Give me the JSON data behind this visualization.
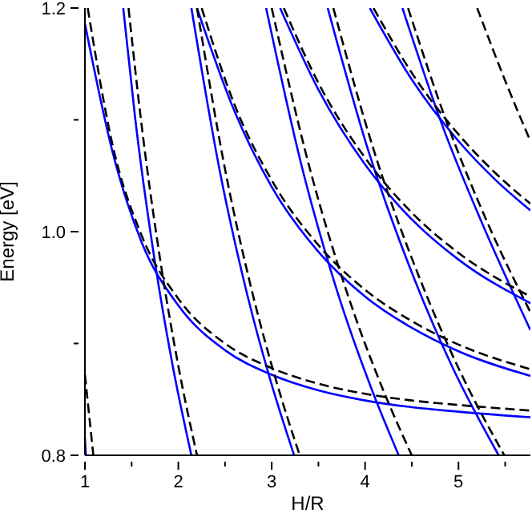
{
  "chart_data": {
    "type": "line",
    "xlabel": "H/R",
    "ylabel": "Energy [eV]",
    "xlim": [
      1,
      5.77
    ],
    "ylim": [
      0.8,
      1.2
    ],
    "xticks": [
      1,
      {
        "value": 1.5,
        "label": null
      },
      2,
      {
        "value": 2.5,
        "label": null
      },
      3,
      {
        "value": 3.5,
        "label": null
      },
      4,
      {
        "value": 4.5,
        "label": null
      },
      5,
      {
        "value": 5.5,
        "label": null
      }
    ],
    "yticks": [
      0.8,
      {
        "value": 0.9,
        "label": null
      },
      {
        "value": 1,
        "label": "1.0"
      },
      {
        "value": 1.1,
        "label": null
      },
      1.2
    ],
    "marker": "none",
    "series": [
      {
        "color": "#0000ff",
        "line_style": "solid",
        "x": [
          1.0,
          1.01
        ],
        "values": [
          0.815,
          0.8
        ]
      },
      {
        "color": "#0000ff",
        "line_style": "solid",
        "x": [
          1.41,
          1.54,
          1.74,
          1.94,
          2.14
        ],
        "values": [
          1.2,
          1.1,
          0.978,
          0.88,
          0.8
        ]
      },
      {
        "color": "#0000ff",
        "line_style": "solid",
        "x": [
          2.14,
          2.44,
          2.74,
          2.99,
          3.24
        ],
        "values": [
          1.2,
          1.056,
          0.943,
          0.866,
          0.8
        ]
      },
      {
        "color": "#0000ff",
        "line_style": "solid",
        "x": [
          2.94,
          3.32,
          3.7,
          4.08,
          4.36
        ],
        "values": [
          1.2,
          1.059,
          0.947,
          0.857,
          0.8
        ]
      },
      {
        "color": "#0000ff",
        "line_style": "solid",
        "x": [
          3.6,
          4.04,
          4.54,
          4.94,
          5.43
        ],
        "values": [
          1.2,
          1.071,
          0.955,
          0.878,
          0.8
        ]
      },
      {
        "color": "#0000ff",
        "line_style": "solid",
        "x": [
          4.4,
          4.84,
          5.24,
          5.77
        ],
        "values": [
          1.2,
          1.092,
          1.01,
          0.912
        ]
      },
      {
        "color": "#0000ff",
        "line_style": "solid",
        "x": [
          1.0,
          1.3,
          1.6,
          2.0,
          2.5,
          3.0,
          3.5,
          4.0,
          4.5,
          5.0,
          5.77
        ],
        "values": [
          1.186,
          1.07,
          0.992,
          0.934,
          0.894,
          0.872,
          0.858,
          0.849,
          0.843,
          0.839,
          0.834
        ]
      },
      {
        "color": "#0000ff",
        "line_style": "solid",
        "x": [
          2.2,
          2.6,
          3.0,
          3.5,
          4.0,
          4.5,
          5.0,
          5.77
        ],
        "values": [
          1.2,
          1.108,
          1.04,
          0.982,
          0.942,
          0.914,
          0.893,
          0.871
        ]
      },
      {
        "color": "#0000ff",
        "line_style": "solid",
        "x": [
          3.09,
          3.5,
          4.0,
          4.5,
          5.0,
          5.77
        ],
        "values": [
          1.2,
          1.127,
          1.06,
          1.011,
          0.975,
          0.936
        ]
      },
      {
        "color": "#0000ff",
        "line_style": "solid",
        "x": [
          4.05,
          4.5,
          5.0,
          5.4,
          5.77
        ],
        "values": [
          1.2,
          1.136,
          1.081,
          1.046,
          1.019
        ]
      },
      {
        "color": "#000000",
        "line_style": "dashed",
        "x": [
          1.0,
          1.09
        ],
        "values": [
          0.872,
          0.8
        ]
      },
      {
        "color": "#000000",
        "line_style": "dashed",
        "x": [
          1.467,
          1.6,
          1.8,
          2.0,
          2.2
        ],
        "values": [
          1.2,
          1.1,
          0.978,
          0.88,
          0.8
        ]
      },
      {
        "color": "#000000",
        "line_style": "dashed",
        "x": [
          2.2,
          2.5,
          2.8,
          3.05,
          3.3
        ],
        "values": [
          1.2,
          1.056,
          0.943,
          0.866,
          0.8
        ]
      },
      {
        "color": "#000000",
        "line_style": "dashed",
        "x": [
          3.0,
          3.4,
          3.8,
          4.2,
          4.5
        ],
        "values": [
          1.2,
          1.059,
          0.947,
          0.857,
          0.8
        ]
      },
      {
        "color": "#000000",
        "line_style": "dashed",
        "x": [
          3.66,
          4.1,
          4.6,
          5.0,
          5.49
        ],
        "values": [
          1.2,
          1.071,
          0.955,
          0.878,
          0.8
        ]
      },
      {
        "color": "#000000",
        "line_style": "dashed",
        "x": [
          4.46,
          4.9,
          5.3,
          5.77
        ],
        "values": [
          1.2,
          1.092,
          1.01,
          0.928
        ]
      },
      {
        "color": "#000000",
        "line_style": "dashed",
        "x": [
          5.2,
          5.5,
          5.77
        ],
        "values": [
          1.2,
          1.135,
          1.081
        ]
      },
      {
        "color": "#000000",
        "line_style": "dashed",
        "x": [
          1.03,
          1.3,
          1.6,
          2.0,
          2.5,
          3.0,
          3.5,
          4.0,
          4.5,
          5.0,
          5.77
        ],
        "values": [
          1.2,
          1.076,
          0.998,
          0.94,
          0.9,
          0.878,
          0.864,
          0.855,
          0.849,
          0.845,
          0.84
        ]
      },
      {
        "color": "#000000",
        "line_style": "dashed",
        "x": [
          2.25,
          2.6,
          3.0,
          3.5,
          4.0,
          4.5,
          5.0,
          5.77
        ],
        "values": [
          1.2,
          1.114,
          1.046,
          0.988,
          0.948,
          0.92,
          0.899,
          0.877
        ]
      },
      {
        "color": "#000000",
        "line_style": "dashed",
        "x": [
          3.13,
          3.5,
          4.0,
          4.5,
          5.0,
          5.77
        ],
        "values": [
          1.2,
          1.133,
          1.066,
          1.017,
          0.981,
          0.942
        ]
      },
      {
        "color": "#000000",
        "line_style": "dashed",
        "x": [
          4.09,
          4.5,
          5.0,
          5.4,
          5.77
        ],
        "values": [
          1.2,
          1.142,
          1.087,
          1.052,
          1.025
        ]
      }
    ]
  }
}
